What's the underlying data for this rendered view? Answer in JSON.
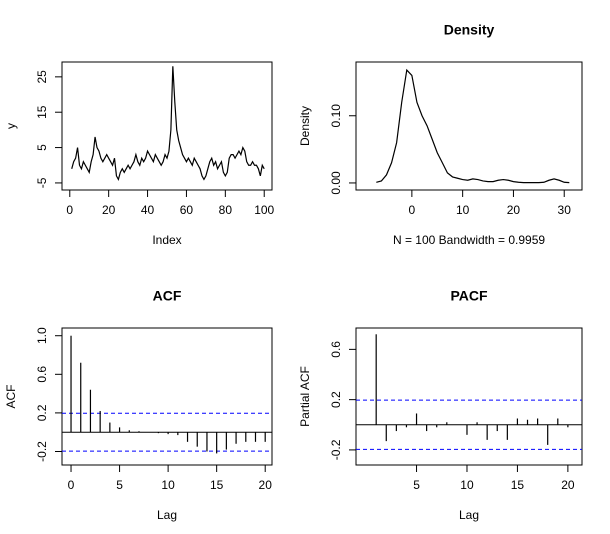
{
  "chart_data": [
    {
      "type": "line",
      "xlabel": "Index",
      "ylabel": "y",
      "color": "#000000",
      "x": [
        1,
        2,
        3,
        4,
        5,
        6,
        7,
        8,
        9,
        10,
        11,
        12,
        13,
        14,
        15,
        16,
        17,
        18,
        19,
        20,
        21,
        22,
        23,
        24,
        25,
        26,
        27,
        28,
        29,
        30,
        31,
        32,
        33,
        34,
        35,
        36,
        37,
        38,
        39,
        40,
        41,
        42,
        43,
        44,
        45,
        46,
        47,
        48,
        49,
        50,
        51,
        52,
        53,
        54,
        55,
        56,
        57,
        58,
        59,
        60,
        61,
        62,
        63,
        64,
        65,
        66,
        67,
        68,
        69,
        70,
        71,
        72,
        73,
        74,
        75,
        76,
        77,
        78,
        79,
        80,
        81,
        82,
        83,
        84,
        85,
        86,
        87,
        88,
        89,
        90,
        91,
        92,
        93,
        94,
        95,
        96,
        97,
        98,
        99,
        100
      ],
      "values": [
        -1,
        1,
        2,
        5,
        0,
        -1,
        1,
        0,
        -1,
        -2,
        1,
        3,
        8,
        5,
        4,
        2,
        1,
        2,
        3,
        2,
        1,
        0,
        2,
        -3,
        -4,
        -2,
        -1,
        -2,
        -1,
        0,
        -1,
        0,
        1,
        3,
        1,
        0,
        2,
        1,
        2,
        4,
        3,
        2,
        1,
        3,
        2,
        1,
        0,
        1,
        3,
        2,
        4,
        10,
        28,
        18,
        10,
        7,
        5,
        3,
        2,
        1,
        2,
        1,
        0,
        2,
        1,
        0,
        -1,
        -3,
        -4,
        -3,
        -1,
        1,
        2,
        0,
        1,
        -1,
        0,
        1,
        -2,
        -3,
        -2,
        2,
        3,
        3,
        2,
        3,
        4,
        3,
        5,
        4,
        1,
        0,
        0,
        1,
        0,
        0,
        -1,
        -3,
        0,
        -1
      ],
      "xlim": [
        -4,
        104
      ],
      "ylim": [
        -7,
        29.2
      ],
      "xticks": [
        0,
        20,
        40,
        60,
        80,
        100
      ],
      "yticks": [
        -5,
        5,
        15,
        25
      ]
    },
    {
      "type": "line",
      "title": "Density",
      "xlabel": "N = 100   Bandwidth = 0.9959",
      "ylabel": "Density",
      "color": "#000000",
      "x": [
        -7,
        -6,
        -5,
        -4,
        -3,
        -2,
        -1,
        0,
        1,
        2,
        3,
        4,
        5,
        6,
        7,
        8,
        9,
        10,
        11,
        12,
        13,
        14,
        15,
        16,
        17,
        18,
        19,
        20,
        21,
        22,
        23,
        24,
        25,
        26,
        27,
        28,
        29,
        30,
        31
      ],
      "values": [
        0.001,
        0.003,
        0.012,
        0.03,
        0.06,
        0.12,
        0.168,
        0.16,
        0.12,
        0.1,
        0.085,
        0.065,
        0.045,
        0.03,
        0.015,
        0.009,
        0.007,
        0.005,
        0.004,
        0.006,
        0.005,
        0.003,
        0.002,
        0.002,
        0.004,
        0.005,
        0.004,
        0.002,
        0.001,
        0.0005,
        0.0005,
        0.0005,
        0.0005,
        0.001,
        0.004,
        0.006,
        0.004,
        0.001,
        0.0005
      ],
      "xlim": [
        -11,
        33.5
      ],
      "ylim": [
        -0.0105,
        0.18
      ],
      "xticks": [
        0,
        10,
        20,
        30
      ],
      "yticks": [
        {
          "value": 0,
          "label": "0.00"
        },
        {
          "value": 0.1,
          "label": "0.10"
        }
      ]
    },
    {
      "type": "acf",
      "title": "ACF",
      "xlabel": "Lag",
      "ylabel": "ACF",
      "color": "#000000",
      "ci": 0.196,
      "ci_color": "#0000ff",
      "x": [
        0,
        1,
        2,
        3,
        4,
        5,
        6,
        7,
        8,
        9,
        10,
        11,
        12,
        13,
        14,
        15,
        16,
        17,
        18,
        19,
        20
      ],
      "values": [
        1.0,
        0.72,
        0.44,
        0.22,
        0.1,
        0.05,
        0.02,
        0.01,
        0.0,
        -0.01,
        -0.02,
        -0.03,
        -0.1,
        -0.15,
        -0.2,
        -0.22,
        -0.18,
        -0.12,
        -0.1,
        -0.1,
        -0.1
      ],
      "xlim": [
        -0.93,
        20.7
      ],
      "ylim": [
        -0.34,
        1.08
      ],
      "xticks": [
        0,
        5,
        10,
        15,
        20
      ],
      "yticks": [
        -0.2,
        0.2,
        0.6,
        {
          "value": 1,
          "label": "1.0"
        }
      ]
    },
    {
      "type": "acf",
      "title": "PACF",
      "xlabel": "Lag",
      "ylabel": "Partial ACF",
      "color": "#000000",
      "ci": 0.196,
      "ci_color": "#0000ff",
      "x": [
        1,
        2,
        3,
        4,
        5,
        6,
        7,
        8,
        9,
        10,
        11,
        12,
        13,
        14,
        15,
        16,
        17,
        18,
        19,
        20
      ],
      "values": [
        0.72,
        -0.13,
        -0.05,
        -0.02,
        0.09,
        -0.05,
        -0.02,
        0.02,
        0.0,
        -0.08,
        0.02,
        -0.12,
        -0.05,
        -0.12,
        0.05,
        0.04,
        0.05,
        -0.16,
        0.05,
        -0.02
      ],
      "xlim": [
        -1,
        21.4
      ],
      "ylim": [
        -0.32,
        0.77
      ],
      "xticks": [
        5,
        10,
        15,
        20
      ],
      "yticks": [
        -0.2,
        0.2,
        0.6
      ]
    }
  ]
}
